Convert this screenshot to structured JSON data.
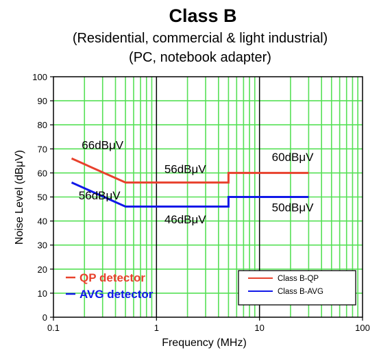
{
  "chart_data": {
    "type": "line",
    "title": "Class B",
    "subtitle_lines": [
      "(Residential, commercial & light industrial)",
      "(PC, notebook adapter)"
    ],
    "xlabel": "Frequency (MHz)",
    "ylabel": "Noise Level (dBμV)",
    "x_scale": "log",
    "xlim": [
      0.1,
      100
    ],
    "ylim": [
      0,
      100
    ],
    "x_ticks": [
      {
        "value": 0.1,
        "label": "0.1"
      },
      {
        "value": 1,
        "label": "1"
      },
      {
        "value": 10,
        "label": "10"
      },
      {
        "value": 100,
        "label": "100"
      }
    ],
    "y_ticks": [
      0,
      10,
      20,
      30,
      40,
      50,
      60,
      70,
      80,
      90,
      100
    ],
    "grid": true,
    "grid_color": "#55e055",
    "series": [
      {
        "name": "Class B-QP",
        "color": "#e8412c",
        "points": [
          [
            0.15,
            66
          ],
          [
            0.5,
            56
          ],
          [
            5,
            56
          ],
          [
            5,
            60
          ],
          [
            30,
            60
          ]
        ]
      },
      {
        "name": "Class B-AVG",
        "color": "#1018e8",
        "points": [
          [
            0.15,
            56
          ],
          [
            0.5,
            46
          ],
          [
            5,
            46
          ],
          [
            5,
            50
          ],
          [
            30,
            50
          ]
        ]
      }
    ],
    "annotations": [
      {
        "text": "66dBμV",
        "x": 0.3,
        "y": 70,
        "anchor": "middle"
      },
      {
        "text": "56dBμV",
        "x": 1.9,
        "y": 60,
        "anchor": "middle"
      },
      {
        "text": "60dBμV",
        "x": 21,
        "y": 65,
        "anchor": "middle"
      },
      {
        "text": "56dBμV",
        "x": 0.28,
        "y": 49,
        "anchor": "middle"
      },
      {
        "text": "46dBμV",
        "x": 1.9,
        "y": 39,
        "anchor": "middle"
      },
      {
        "text": "50dBμV",
        "x": 21,
        "y": 44,
        "anchor": "middle"
      }
    ],
    "inline_legend": [
      {
        "label": "QP detector",
        "color": "#e8412c"
      },
      {
        "label": "AVG detector",
        "color": "#1018e8"
      }
    ],
    "legend": {
      "position": "bottom-right",
      "entries": [
        {
          "label": "Class B-QP",
          "color": "#e8412c"
        },
        {
          "label": "Class B-AVG",
          "color": "#1018e8"
        }
      ]
    }
  }
}
